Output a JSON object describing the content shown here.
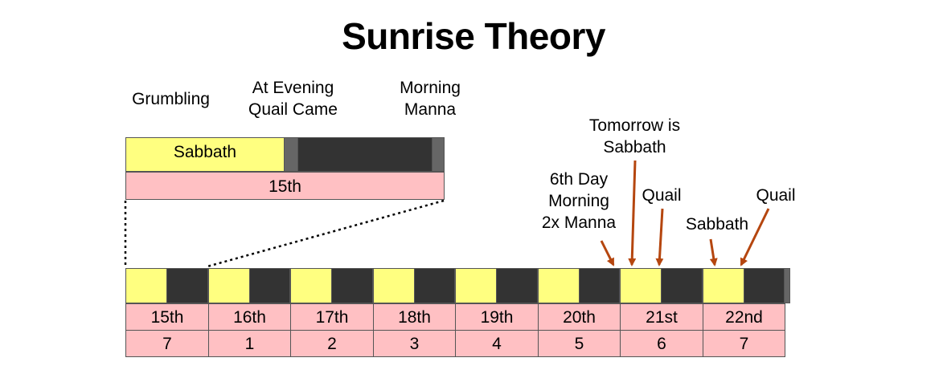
{
  "title": "Sunrise Theory",
  "top_labels": {
    "grumbling": "Grumbling",
    "at_evening": "At Evening\nQuail Came",
    "morning": "Morning\nManna"
  },
  "zoom": {
    "sabbath": "Sabbath",
    "date": "15th"
  },
  "annotations": {
    "tomorrow": "Tomorrow is\nSabbath",
    "sixth_day": "6th Day\nMorning\n2x Manna",
    "quail_1": "Quail",
    "sabbath": "Sabbath",
    "quail_2": "Quail"
  },
  "days": [
    {
      "date": "15th",
      "num": "7"
    },
    {
      "date": "16th",
      "num": "1"
    },
    {
      "date": "17th",
      "num": "2"
    },
    {
      "date": "18th",
      "num": "3"
    },
    {
      "date": "19th",
      "num": "4"
    },
    {
      "date": "20th",
      "num": "5"
    },
    {
      "date": "21st",
      "num": "6"
    },
    {
      "date": "22nd",
      "num": "7"
    }
  ],
  "colors": {
    "day": "#ffff80",
    "night": "#333333",
    "pink": "#ffc0c3",
    "arrow": "#b5460f"
  }
}
